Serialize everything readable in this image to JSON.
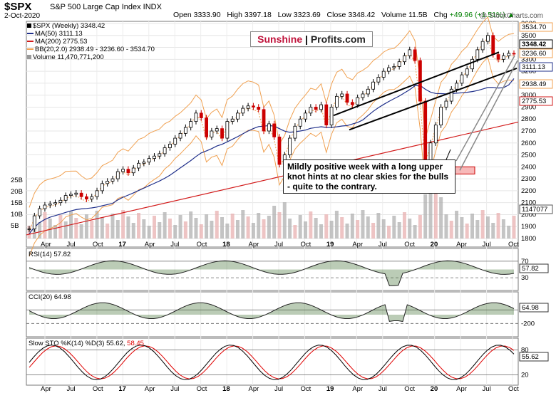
{
  "header": {
    "title": "$SPX",
    "subtitle": "S&P 500 Large Cap Index  INDX",
    "date": "2-Oct-2020",
    "open_label": "Open",
    "open": "3333.90",
    "high_label": "High",
    "high": "3397.18",
    "low_label": "Low",
    "low": "3323.69",
    "close_label": "Close",
    "close": "3348.42",
    "volume_label": "Volume",
    "volume": "11.5B",
    "chg_label": "Chg",
    "chg": "+49.96 (+1.51%)",
    "chg_arrow": "▲",
    "watermark": "@ StockCharts.com"
  },
  "legend": {
    "spx": "$SPX (Weekly) 3348.42",
    "ma50": "MA(50) 3111.13",
    "ma200": "MA(200) 2775.53",
    "bb": "BB(20,2.0) 2938.49 - 3236.60 - 3534.70",
    "volume": "Volume 11,470,771,200"
  },
  "logo": {
    "part1": "Sunshine",
    "part2": "Profits.com"
  },
  "annotation": "Mildly positive week with a long upper knot hints at no clear skies for the bulls - quite to the contrary.",
  "panels": {
    "rsi": "RSI(14) 57.82",
    "cci": "CCI(20) 64.98",
    "sto_main": "Slow STO %K(14) %D(3) 55.62, ",
    "sto_d": "58.45"
  },
  "colors": {
    "up": "#000000",
    "down": "#cc0000",
    "ma50": "#1f2f8a",
    "ma200": "#d21a1a",
    "bb": "#f0a050",
    "volume": "#b0b0b0",
    "indicator_fill": "#3c6e2e",
    "sto_k": "#000000",
    "sto_d": "#e00000",
    "zone": "#f28b8b"
  },
  "chart_data": [
    {
      "type": "line",
      "title": "$SPX S&P 500 Large Cap Index (Weekly)",
      "x_ticks": [
        "Apr",
        "Jul",
        "Oct",
        "17",
        "Apr",
        "Jul",
        "Oct",
        "18",
        "Apr",
        "Jul",
        "Oct",
        "19",
        "Apr",
        "Jul",
        "Oct",
        "20",
        "Apr",
        "Jul",
        "Oct"
      ],
      "y_ticks": [
        1800,
        1900,
        2000,
        2100,
        2200,
        2300,
        2400,
        2500,
        2600,
        2700,
        2800,
        2900,
        3000,
        3100,
        3200,
        3300,
        3400,
        3500,
        3600
      ],
      "ylim": [
        1800,
        3600
      ],
      "volume_ticks": [
        "5B",
        "10B",
        "15B",
        "20B",
        "25B"
      ],
      "price_labels": [
        {
          "text": "3534.70",
          "value": 3534.7
        },
        {
          "text": "3348.42",
          "value": 3348.42
        },
        {
          "text": "3236.60",
          "value": 3236.6
        },
        {
          "text": "3111.13",
          "value": 3111.13
        },
        {
          "text": "2938.49",
          "value": 2938.49
        },
        {
          "text": "2775.53",
          "value": 2775.53
        },
        {
          "text": "1147077",
          "value": null
        }
      ],
      "series": [
        {
          "name": "$SPX (Weekly)",
          "x": [
            0,
            3,
            6,
            9,
            12,
            15,
            18,
            21,
            24,
            27,
            30,
            33,
            36,
            39,
            42,
            45,
            48,
            51,
            54,
            57,
            60,
            63,
            66,
            69,
            72,
            75,
            78,
            81,
            84,
            87,
            90,
            93,
            96,
            99,
            102,
            105,
            108,
            111,
            114,
            117,
            120,
            123,
            126,
            129,
            132,
            135,
            138,
            141,
            144,
            147,
            150,
            153,
            156,
            159,
            162,
            165,
            168,
            171,
            174,
            177,
            180,
            183,
            186,
            189,
            192,
            195,
            198,
            201,
            204,
            207,
            210,
            213,
            216,
            219,
            222,
            225,
            228,
            231,
            234,
            237,
            240,
            243,
            246,
            249,
            252,
            255,
            258,
            261,
            264,
            267,
            270,
            273,
            276,
            279
          ],
          "values": [
            1880,
            1990,
            2050,
            2080,
            2090,
            2100,
            2120,
            2160,
            2170,
            2180,
            2150,
            2130,
            2150,
            2200,
            2260,
            2280,
            2300,
            2360,
            2380,
            2350,
            2390,
            2430,
            2440,
            2470,
            2490,
            2510,
            2560,
            2590,
            2640,
            2680,
            2730,
            2780,
            2850,
            2810,
            2650,
            2700,
            2720,
            2640,
            2780,
            2800,
            2850,
            2890,
            2910,
            2900,
            2880,
            2700,
            2760,
            2650,
            2420,
            2500,
            2640,
            2740,
            2800,
            2850,
            2900,
            2880,
            2920,
            2750,
            2900,
            2990,
            3010,
            2940,
            2920,
            2980,
            3010,
            3050,
            3110,
            3150,
            3200,
            3230,
            3240,
            3280,
            3330,
            3380,
            3290,
            2950,
            2450,
            2600,
            2750,
            2900,
            2950,
            3050,
            3100,
            3170,
            3220,
            3300,
            3380,
            3450,
            3500,
            3340,
            3300,
            3330,
            3350,
            3348
          ]
        },
        {
          "name": "MA(50)",
          "values": [
            3111.13
          ]
        },
        {
          "name": "MA(200)",
          "values": [
            2775.53
          ]
        },
        {
          "name": "BB(20,2.0)",
          "values": [
            2938.49,
            3236.6,
            3534.7
          ]
        }
      ],
      "annotations": [
        "support zone 2340-2400",
        "rising channel",
        "rising wedge"
      ]
    },
    {
      "type": "line",
      "title": "RSI(14) 57.82",
      "y_ticks": [
        30,
        70
      ],
      "ylim": [
        10,
        90
      ],
      "series": [
        {
          "name": "RSI(14)",
          "values": [
            57.82
          ]
        }
      ]
    },
    {
      "type": "line",
      "title": "CCI(20) 64.98",
      "y_ticks": [
        -200,
        100
      ],
      "ylim": [
        -300,
        300
      ],
      "series": [
        {
          "name": "CCI(20)",
          "values": [
            64.98
          ]
        }
      ]
    },
    {
      "type": "line",
      "title": "Slow STO %K(14) %D(3)",
      "y_ticks": [
        20,
        80
      ],
      "ylim": [
        0,
        100
      ],
      "series": [
        {
          "name": "%K",
          "values": [
            55.62
          ]
        },
        {
          "name": "%D",
          "values": [
            58.45
          ]
        }
      ]
    }
  ]
}
